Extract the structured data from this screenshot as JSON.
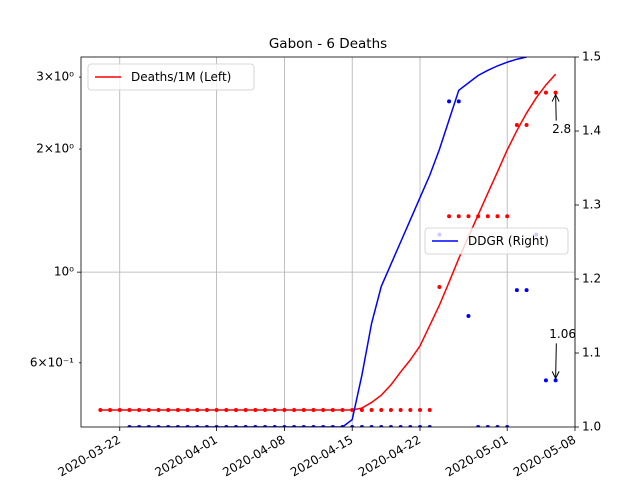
{
  "chart_data": {
    "type": "line",
    "title": "Gabon - 6 Deaths",
    "xlim": [
      "2020-03-18",
      "2020-05-08"
    ],
    "xticks": [
      "2020-03-22",
      "2020-04-01",
      "2020-04-08",
      "2020-04-15",
      "2020-04-22",
      "2020-05-01",
      "2020-05-08"
    ],
    "yscale": "log",
    "ylim": [
      0.418,
      3.36
    ],
    "yticks": [
      {
        "value": 0.6,
        "label": "6×10⁻¹"
      },
      {
        "value": 1,
        "label": "10⁰"
      },
      {
        "value": 2,
        "label": "2×10⁰"
      },
      {
        "value": 3,
        "label": "3×10⁰"
      }
    ],
    "y2lim": [
      1.0,
      1.5
    ],
    "y2ticks": [
      {
        "value": 1.0,
        "label": "1.0"
      },
      {
        "value": 1.1,
        "label": "1.1"
      },
      {
        "value": 1.2,
        "label": "1.2"
      },
      {
        "value": 1.3,
        "label": "1.3"
      },
      {
        "value": 1.4,
        "label": "1.4"
      },
      {
        "value": 1.5,
        "label": "1.5"
      }
    ],
    "grid": true,
    "series": [
      {
        "name": "Deaths/1M (Left)",
        "type": "line",
        "color": "#ff0000",
        "axis": "y",
        "legend": "upper left",
        "x": [
          "2020-03-20",
          "2020-03-21",
          "2020-03-22",
          "2020-03-23",
          "2020-03-24",
          "2020-03-25",
          "2020-03-26",
          "2020-03-27",
          "2020-03-28",
          "2020-03-29",
          "2020-03-30",
          "2020-03-31",
          "2020-04-01",
          "2020-04-02",
          "2020-04-03",
          "2020-04-04",
          "2020-04-05",
          "2020-04-06",
          "2020-04-07",
          "2020-04-08",
          "2020-04-09",
          "2020-04-10",
          "2020-04-11",
          "2020-04-12",
          "2020-04-13",
          "2020-04-14",
          "2020-04-15",
          "2020-04-16",
          "2020-04-17",
          "2020-04-18",
          "2020-04-19",
          "2020-04-20",
          "2020-04-21",
          "2020-04-22",
          "2020-04-23",
          "2020-04-24",
          "2020-04-25",
          "2020-04-26",
          "2020-04-27",
          "2020-04-28",
          "2020-04-29",
          "2020-04-30",
          "2020-05-01",
          "2020-05-02",
          "2020-05-03",
          "2020-05-04",
          "2020-05-05",
          "2020-05-06"
        ],
        "values": [
          0.46,
          0.46,
          0.46,
          0.46,
          0.46,
          0.46,
          0.46,
          0.46,
          0.46,
          0.46,
          0.46,
          0.46,
          0.46,
          0.46,
          0.46,
          0.46,
          0.46,
          0.46,
          0.46,
          0.46,
          0.46,
          0.46,
          0.46,
          0.46,
          0.46,
          0.46,
          0.46,
          0.465,
          0.48,
          0.5,
          0.53,
          0.57,
          0.61,
          0.66,
          0.74,
          0.83,
          0.945,
          1.08,
          1.22,
          1.38,
          1.56,
          1.76,
          1.99,
          2.22,
          2.45,
          2.67,
          2.87,
          3.05
        ]
      },
      {
        "type": "scatter",
        "color": "#ff0000",
        "axis": "y",
        "x": [
          "2020-03-20",
          "2020-03-21",
          "2020-03-22",
          "2020-03-23",
          "2020-03-24",
          "2020-03-25",
          "2020-03-26",
          "2020-03-27",
          "2020-03-28",
          "2020-03-29",
          "2020-03-30",
          "2020-03-31",
          "2020-04-01",
          "2020-04-02",
          "2020-04-03",
          "2020-04-04",
          "2020-04-05",
          "2020-04-06",
          "2020-04-07",
          "2020-04-08",
          "2020-04-09",
          "2020-04-10",
          "2020-04-11",
          "2020-04-12",
          "2020-04-13",
          "2020-04-14",
          "2020-04-15",
          "2020-04-16",
          "2020-04-17",
          "2020-04-18",
          "2020-04-19",
          "2020-04-20",
          "2020-04-21",
          "2020-04-22",
          "2020-04-23",
          "2020-04-24",
          "2020-04-25",
          "2020-04-26",
          "2020-04-27",
          "2020-04-28",
          "2020-04-29",
          "2020-04-30",
          "2020-05-01",
          "2020-05-02",
          "2020-05-03",
          "2020-05-04",
          "2020-05-05",
          "2020-05-06"
        ],
        "values": [
          0.46,
          0.46,
          0.46,
          0.46,
          0.46,
          0.46,
          0.46,
          0.46,
          0.46,
          0.46,
          0.46,
          0.46,
          0.46,
          0.46,
          0.46,
          0.46,
          0.46,
          0.46,
          0.46,
          0.46,
          0.46,
          0.46,
          0.46,
          0.46,
          0.46,
          0.46,
          0.46,
          0.46,
          0.46,
          0.46,
          0.46,
          0.46,
          0.46,
          0.46,
          0.46,
          0.92,
          1.37,
          1.37,
          1.37,
          1.37,
          1.37,
          1.37,
          1.37,
          2.29,
          2.29,
          2.75,
          2.75,
          2.75
        ]
      },
      {
        "name": "DDGR (Right)",
        "type": "line",
        "color": "#0000ff",
        "axis": "y2",
        "legend": "center right",
        "x": [
          "2020-03-23",
          "2020-03-24",
          "2020-03-25",
          "2020-03-26",
          "2020-03-27",
          "2020-03-28",
          "2020-03-29",
          "2020-03-30",
          "2020-03-31",
          "2020-04-01",
          "2020-04-02",
          "2020-04-03",
          "2020-04-04",
          "2020-04-05",
          "2020-04-06",
          "2020-04-07",
          "2020-04-08",
          "2020-04-09",
          "2020-04-10",
          "2020-04-11",
          "2020-04-12",
          "2020-04-13",
          "2020-04-14",
          "2020-04-15",
          "2020-04-16",
          "2020-04-17",
          "2020-04-18",
          "2020-04-19",
          "2020-04-20",
          "2020-04-21",
          "2020-04-22",
          "2020-04-23",
          "2020-04-24",
          "2020-04-25",
          "2020-04-26",
          "2020-04-27",
          "2020-04-28",
          "2020-04-29",
          "2020-04-30",
          "2020-05-01",
          "2020-05-02",
          "2020-05-03"
        ],
        "values": [
          1.0,
          1.0,
          1.0,
          1.0,
          1.0,
          1.0,
          1.0,
          1.0,
          1.0,
          1.0,
          1.0,
          1.0,
          1.0,
          1.0,
          1.0,
          1.0,
          1.0,
          1.0,
          1.0,
          1.0,
          1.0,
          1.0,
          1.0,
          1.01,
          1.07,
          1.14,
          1.19,
          1.22,
          1.25,
          1.28,
          1.31,
          1.34,
          1.375,
          1.415,
          1.455,
          1.465,
          1.475,
          1.482,
          1.488,
          1.493,
          1.497,
          1.5
        ]
      },
      {
        "type": "scatter",
        "color": "#0000ff",
        "axis": "y2",
        "x": [
          "2020-03-23",
          "2020-03-24",
          "2020-03-25",
          "2020-03-26",
          "2020-03-27",
          "2020-03-28",
          "2020-03-29",
          "2020-03-30",
          "2020-03-31",
          "2020-04-01",
          "2020-04-02",
          "2020-04-03",
          "2020-04-04",
          "2020-04-05",
          "2020-04-06",
          "2020-04-07",
          "2020-04-08",
          "2020-04-09",
          "2020-04-10",
          "2020-04-11",
          "2020-04-12",
          "2020-04-13",
          "2020-04-14",
          "2020-04-15",
          "2020-04-16",
          "2020-04-17",
          "2020-04-18",
          "2020-04-19",
          "2020-04-20",
          "2020-04-21",
          "2020-04-22",
          "2020-04-23",
          "2020-04-24",
          "2020-04-25",
          "2020-04-26",
          "2020-04-27",
          "2020-04-28",
          "2020-04-29",
          "2020-04-30",
          "2020-05-01",
          "2020-05-02",
          "2020-05-03",
          "2020-05-04",
          "2020-05-05",
          "2020-05-06"
        ],
        "values": [
          1.0,
          1.0,
          1.0,
          1.0,
          1.0,
          1.0,
          1.0,
          1.0,
          1.0,
          1.0,
          1.0,
          1.0,
          1.0,
          1.0,
          1.0,
          1.0,
          1.0,
          1.0,
          1.0,
          1.0,
          1.0,
          1.0,
          1.0,
          1.0,
          1.0,
          1.0,
          1.0,
          1.0,
          1.0,
          1.0,
          1.0,
          1.0,
          1.26,
          1.44,
          1.44,
          1.15,
          1.0,
          1.0,
          1.0,
          1.0,
          1.185,
          1.185,
          1.26,
          1.063,
          1.063
        ]
      }
    ],
    "annotations": [
      {
        "text": "2.8",
        "x": "2020-05-06",
        "y": 2.75,
        "axis": "y"
      },
      {
        "text": "1.06",
        "x": "2020-05-06",
        "y": 1.063,
        "axis": "y2"
      }
    ]
  }
}
